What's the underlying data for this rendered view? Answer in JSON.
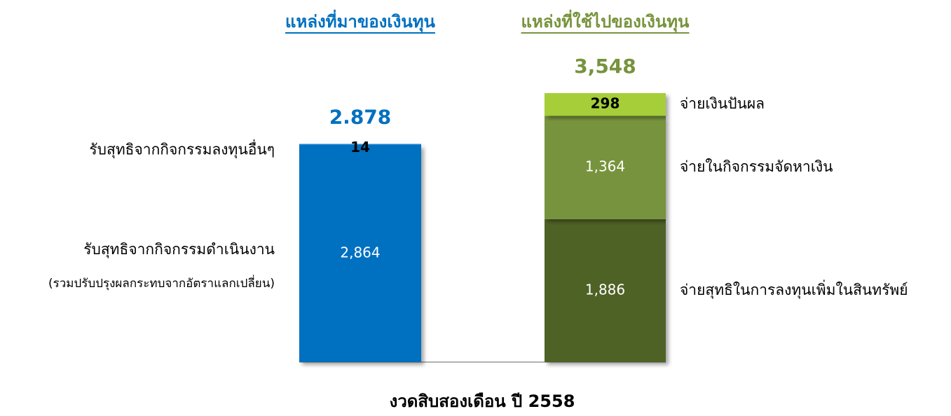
{
  "chart_data": {
    "type": "stacked-bar",
    "x_label": "งวดสิบสองเดือน ปี 2558",
    "stacks": [
      {
        "name": "แหล่งที่มาของเงินทุน",
        "color": "#0070c0",
        "total_label": "2.878",
        "segments": [
          {
            "name": "รับสุทธิจากกิจกรรมดำเนินงาน",
            "note": "(รวมปรับปรุงผลกระทบจากอัตราแลกเปลี่ยน)",
            "value": 2864,
            "value_label": "2,864",
            "color": "#0070c0",
            "label_color": "#ffffff"
          },
          {
            "name": "รับสุทธิจากกิจกรรมลงทุนอื่นๆ",
            "value": 14,
            "value_label": "14",
            "color": "#1a85d6",
            "label_color": "#000000"
          }
        ]
      },
      {
        "name": "แหล่งที่ใช้ไปของเงินทุน",
        "color": "#77933c",
        "total_label": "3,548",
        "segments": [
          {
            "name": "จ่ายสุทธิในการลงทุนเพิ่มในสินทรัพย์",
            "value": 1886,
            "value_label": "1,886",
            "color": "#4f6228",
            "label_color": "#ffffff"
          },
          {
            "name": "จ่ายในกิจกรรมจัดหาเงิน",
            "value": 1364,
            "value_label": "1,364",
            "color": "#77933c",
            "label_color": "#ffffff"
          },
          {
            "name": "จ่ายเงินปันผล",
            "value": 298,
            "value_label": "298",
            "color": "#a6ce39",
            "label_color": "#000000"
          }
        ]
      }
    ]
  }
}
